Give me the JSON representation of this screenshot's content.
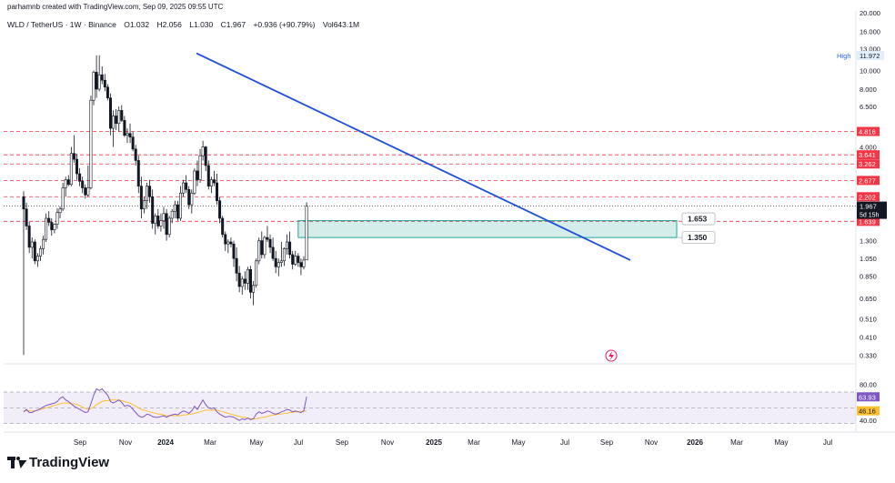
{
  "header": {
    "created": "parhamnb created with TradingView.com, Sep 09, 2025 09:55 UTC",
    "symbol": "WLD / TetherUS · 1W · Binance",
    "open": "O1.032",
    "high": "H2.056",
    "low": "L1.030",
    "close": "C1.967",
    "change": "+0.936 (+90.79%)",
    "volume": "Vol643.1M"
  },
  "brand": "TradingView",
  "colors": {
    "up": "#ffffff",
    "down": "#131722",
    "trendline": "#1e4fd8",
    "resistance": "#f23645",
    "box": "#26a69a",
    "rsi": "#7e57c2",
    "rsi_ma": "#fbc02d"
  },
  "chart_data": {
    "type": "candlestick",
    "y_scale": "log",
    "price_ticks": [
      "20.000",
      "16.000",
      "13.000",
      "10.000",
      "8.000",
      "6.500",
      "4.000",
      "2.202",
      "1.300",
      "1.050",
      "0.850",
      "0.650",
      "0.510",
      "0.410",
      "0.330"
    ],
    "x_ticks": [
      "Sep",
      "Nov",
      "2024",
      "Mar",
      "May",
      "Jul",
      "Sep",
      "Nov",
      "2025",
      "Mar",
      "May",
      "Jul",
      "Sep",
      "Nov",
      "2026",
      "Mar",
      "May",
      "Jul"
    ],
    "high_label": {
      "text": "High",
      "value": "11.972"
    },
    "current_price": {
      "value": "1.967",
      "countdown": "5d 15h"
    },
    "levels": [
      {
        "price": 4.816,
        "label": "4.816"
      },
      {
        "price": 3.641,
        "label": "3.641"
      },
      {
        "price": 3.262,
        "label": "3.262"
      },
      {
        "price": 2.677,
        "label": "2.677"
      },
      {
        "price": 2.202,
        "label": "2.202"
      },
      {
        "price": 1.639,
        "label": "1.639"
      }
    ],
    "callouts": [
      {
        "price": 1.653,
        "label": "1.653"
      },
      {
        "price": 1.35,
        "label": "1.350"
      }
    ],
    "box_zone": {
      "from_price": 1.35,
      "to_price": 1.653,
      "start": "2025-07",
      "end": "2025-12"
    },
    "trendline": {
      "start": {
        "date": "2024-03",
        "price": 12.3
      },
      "end": {
        "date": "2025-10",
        "price": 1.03
      }
    },
    "candles": [
      [
        2.202,
        2.35,
        0.33,
        1.9
      ],
      [
        1.9,
        2.05,
        1.48,
        1.55
      ],
      [
        1.55,
        1.63,
        1.12,
        1.2
      ],
      [
        1.2,
        1.35,
        1.05,
        1.28
      ],
      [
        1.28,
        1.32,
        0.98,
        1.02
      ],
      [
        1.02,
        1.12,
        0.95,
        1.08
      ],
      [
        1.08,
        1.22,
        1.02,
        1.18
      ],
      [
        1.18,
        1.38,
        1.1,
        1.32
      ],
      [
        1.32,
        1.8,
        1.28,
        1.7
      ],
      [
        1.7,
        1.85,
        1.55,
        1.62
      ],
      [
        1.62,
        1.7,
        1.38,
        1.48
      ],
      [
        1.48,
        1.6,
        1.42,
        1.58
      ],
      [
        1.58,
        1.92,
        1.5,
        1.82
      ],
      [
        1.82,
        1.96,
        1.7,
        1.9
      ],
      [
        1.9,
        2.6,
        1.85,
        2.45
      ],
      [
        2.45,
        2.8,
        2.2,
        2.7
      ],
      [
        2.7,
        2.85,
        2.5,
        2.55
      ],
      [
        2.55,
        4.0,
        2.5,
        3.7
      ],
      [
        3.7,
        4.6,
        3.3,
        3.45
      ],
      [
        3.45,
        3.7,
        2.7,
        2.9
      ],
      [
        2.9,
        3.1,
        2.5,
        2.65
      ],
      [
        2.65,
        2.8,
        2.3,
        2.45
      ],
      [
        2.45,
        2.55,
        2.15,
        2.25
      ],
      [
        2.25,
        3.2,
        2.2,
        2.45
      ],
      [
        2.45,
        7.4,
        2.4,
        7.0
      ],
      [
        7.0,
        10.0,
        6.6,
        9.8
      ],
      [
        9.8,
        11.97,
        7.2,
        8.0
      ],
      [
        8.0,
        12.0,
        7.8,
        9.5
      ],
      [
        9.5,
        10.5,
        8.5,
        8.9
      ],
      [
        8.9,
        9.6,
        7.8,
        8.2
      ],
      [
        8.2,
        8.5,
        7.0,
        7.2
      ],
      [
        7.2,
        7.6,
        4.6,
        5.0
      ],
      [
        5.0,
        6.2,
        4.0,
        5.8
      ],
      [
        5.8,
        6.3,
        4.9,
        5.3
      ],
      [
        5.3,
        6.5,
        4.8,
        6.2
      ],
      [
        6.2,
        6.6,
        5.4,
        5.5
      ],
      [
        5.5,
        5.8,
        4.5,
        4.6
      ],
      [
        4.6,
        5.0,
        4.2,
        4.7
      ],
      [
        4.7,
        5.3,
        4.2,
        4.5
      ],
      [
        4.5,
        4.8,
        3.8,
        3.9
      ],
      [
        3.9,
        4.1,
        3.2,
        3.4
      ],
      [
        3.4,
        3.6,
        2.3,
        2.5
      ],
      [
        2.5,
        2.8,
        1.7,
        1.9
      ],
      [
        1.9,
        2.2,
        1.8,
        2.1
      ],
      [
        2.1,
        2.6,
        1.9,
        2.5
      ],
      [
        2.5,
        2.7,
        2.05,
        2.2
      ],
      [
        2.2,
        2.4,
        1.5,
        1.6
      ],
      [
        1.6,
        1.8,
        1.4,
        1.75
      ],
      [
        1.75,
        1.9,
        1.5,
        1.55
      ],
      [
        1.55,
        1.8,
        1.45,
        1.65
      ],
      [
        1.65,
        1.95,
        1.5,
        1.8
      ],
      [
        1.8,
        1.9,
        1.3,
        1.4
      ],
      [
        1.4,
        1.75,
        1.35,
        1.7
      ],
      [
        1.7,
        1.9,
        1.6,
        1.85
      ],
      [
        1.85,
        2.1,
        1.7,
        2.0
      ],
      [
        2.0,
        2.1,
        1.65,
        1.7
      ],
      [
        1.7,
        2.5,
        1.65,
        2.3
      ],
      [
        2.3,
        2.7,
        2.2,
        2.6
      ],
      [
        2.6,
        2.85,
        2.3,
        2.4
      ],
      [
        2.4,
        2.5,
        1.9,
        2.0
      ],
      [
        2.0,
        2.4,
        1.8,
        2.3
      ],
      [
        2.3,
        3.1,
        2.25,
        3.0
      ],
      [
        3.0,
        3.4,
        2.5,
        2.7
      ],
      [
        2.7,
        3.9,
        2.6,
        3.6
      ],
      [
        3.6,
        4.3,
        3.4,
        4.0
      ],
      [
        4.0,
        4.05,
        3.0,
        3.2
      ],
      [
        3.2,
        3.4,
        2.4,
        2.5
      ],
      [
        2.5,
        2.8,
        2.3,
        2.7
      ],
      [
        2.7,
        3.0,
        2.5,
        2.6
      ],
      [
        2.6,
        2.9,
        2.0,
        2.1
      ],
      [
        2.1,
        2.2,
        1.6,
        1.7
      ],
      [
        1.7,
        1.75,
        1.35,
        1.4
      ],
      [
        1.4,
        1.45,
        1.15,
        1.25
      ],
      [
        1.25,
        1.32,
        1.12,
        1.28
      ],
      [
        1.28,
        1.35,
        1.2,
        1.25
      ],
      [
        1.25,
        1.3,
        0.95,
        1.05
      ],
      [
        1.05,
        1.2,
        0.8,
        0.88
      ],
      [
        0.88,
        0.96,
        0.7,
        0.75
      ],
      [
        0.75,
        0.85,
        0.68,
        0.82
      ],
      [
        0.82,
        0.9,
        0.72,
        0.78
      ],
      [
        0.78,
        0.95,
        0.72,
        0.92
      ],
      [
        0.92,
        0.96,
        0.65,
        0.7
      ],
      [
        0.7,
        0.8,
        0.6,
        0.76
      ],
      [
        0.76,
        1.05,
        0.74,
        1.02
      ],
      [
        1.02,
        1.35,
        0.98,
        1.3
      ],
      [
        1.3,
        1.45,
        1.05,
        1.1
      ],
      [
        1.1,
        1.38,
        1.05,
        1.35
      ],
      [
        1.35,
        1.55,
        1.28,
        1.32
      ],
      [
        1.32,
        1.4,
        1.12,
        1.2
      ],
      [
        1.2,
        1.35,
        1.02,
        1.05
      ],
      [
        1.05,
        1.15,
        0.88,
        0.95
      ],
      [
        0.95,
        1.05,
        0.85,
        1.0
      ],
      [
        1.0,
        1.28,
        0.95,
        1.02
      ],
      [
        1.02,
        1.2,
        0.96,
        1.18
      ],
      [
        1.18,
        1.4,
        1.1,
        1.28
      ],
      [
        1.28,
        1.45,
        1.05,
        1.1
      ],
      [
        1.1,
        1.15,
        0.92,
        0.98
      ],
      [
        0.98,
        1.15,
        0.96,
        1.08
      ],
      [
        1.08,
        1.12,
        0.95,
        1.0
      ],
      [
        1.0,
        1.05,
        0.86,
        0.95
      ],
      [
        0.95,
        1.08,
        0.92,
        1.03
      ],
      [
        1.032,
        2.056,
        1.03,
        1.967
      ]
    ],
    "rsi": {
      "ticks": [
        "80.00",
        "40.00"
      ],
      "value_label": "63.93",
      "ma_label": "46.16",
      "values": [
        45,
        48,
        44,
        44,
        46,
        47,
        49,
        51,
        53,
        54,
        55,
        56,
        58,
        62,
        64,
        60,
        58,
        55,
        52,
        50,
        48,
        46,
        44,
        45,
        55,
        66,
        74,
        72,
        74,
        70,
        66,
        58,
        56,
        58,
        60,
        57,
        52,
        53,
        52,
        48,
        44,
        40,
        38,
        39,
        42,
        41,
        39,
        38,
        38,
        39,
        40,
        38,
        40,
        41,
        42,
        41,
        44,
        46,
        45,
        43,
        46,
        52,
        48,
        54,
        60,
        54,
        50,
        49,
        50,
        45,
        42,
        40,
        38,
        39,
        39,
        38,
        36,
        34,
        36,
        35,
        37,
        35,
        36,
        42,
        45,
        43,
        44,
        46,
        45,
        43,
        42,
        43,
        45,
        46,
        48,
        47,
        45,
        46,
        45,
        44,
        46,
        64
      ],
      "ma_values": [
        46,
        46,
        46,
        46,
        46,
        47,
        48,
        49,
        50,
        51,
        52,
        53,
        54,
        55,
        56,
        56,
        56,
        55,
        55,
        54,
        53,
        51,
        49,
        48,
        49,
        51,
        54,
        56,
        58,
        59,
        59,
        60,
        60,
        60,
        60,
        59,
        58,
        57,
        56,
        54,
        52,
        50,
        48,
        47,
        46,
        45,
        44,
        43,
        42,
        42,
        41,
        40,
        40,
        40,
        40,
        40,
        40,
        41,
        41,
        42,
        42,
        43,
        44,
        45,
        46,
        47,
        47,
        47,
        47,
        47,
        46,
        45,
        44,
        43,
        42,
        41,
        40,
        39,
        38,
        38,
        37,
        36,
        36,
        36,
        37,
        38,
        38,
        39,
        40,
        41,
        41,
        42,
        42,
        43,
        43,
        44,
        44,
        45,
        45,
        45,
        46,
        46.16
      ]
    }
  }
}
